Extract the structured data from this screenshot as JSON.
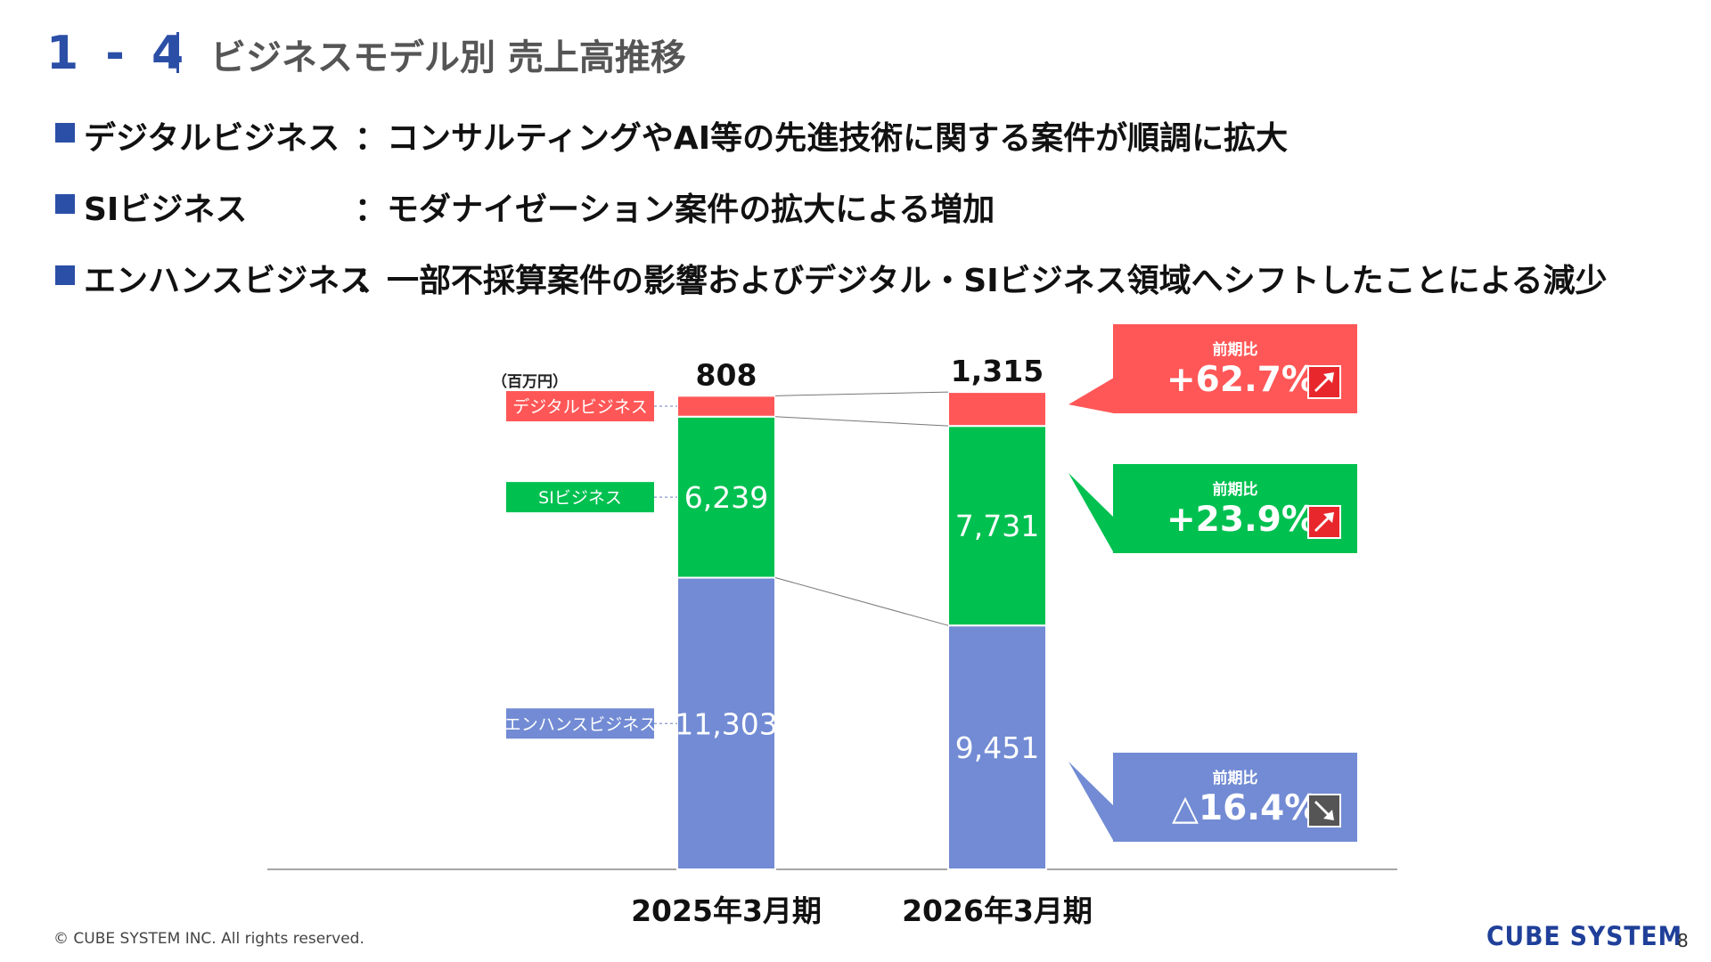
{
  "header": {
    "section": "1 - 4",
    "title": "ビジネスモデル別 売上高推移"
  },
  "bullets": [
    {
      "name": "デジタルビジネス",
      "desc": "：コンサルティングやAI等の先進技術に関する案件が順調に拡大"
    },
    {
      "name": "SIビジネス",
      "desc": "：モダナイゼーション案件の拡大による増加"
    },
    {
      "name": "エンハンスビジネス",
      "desc": "：一部不採算案件の影響およびデジタル・SIビジネス領域へシフトしたことによる減少"
    }
  ],
  "chart_data": {
    "type": "bar",
    "stacked": true,
    "unit": "（百万円）",
    "categories": [
      "2025年3月期",
      "2026年3月期"
    ],
    "series": [
      {
        "name": "エンハンスビジネス",
        "values": [
          11303,
          9451
        ],
        "labels": [
          "11,303",
          "9,451"
        ],
        "color": "#728bd4"
      },
      {
        "name": "SIビジネス",
        "values": [
          6239,
          7731
        ],
        "labels": [
          "6,239",
          "7,731"
        ],
        "color": "#00c050"
      },
      {
        "name": "デジタルビジネス",
        "values": [
          808,
          1315
        ],
        "labels": [
          "808",
          "1,315"
        ],
        "color": "#ff5757"
      }
    ],
    "ylim": [
      0,
      18500
    ]
  },
  "callouts": [
    {
      "head": "前期比",
      "value": "+62.7%",
      "direction": "up",
      "color": "#ff5757",
      "icon": "arrow-up-right-icon"
    },
    {
      "head": "前期比",
      "value": "+23.9%",
      "direction": "up",
      "color": "#00c050",
      "icon": "arrow-up-right-icon"
    },
    {
      "head": "前期比",
      "value": "△16.4%",
      "direction": "down",
      "color": "#728bd4",
      "icon": "arrow-down-right-icon"
    }
  ],
  "footer": {
    "copyright": "© CUBE SYSTEM INC. All rights reserved.",
    "logo": "CUBE SYSTEM",
    "page": "8"
  }
}
